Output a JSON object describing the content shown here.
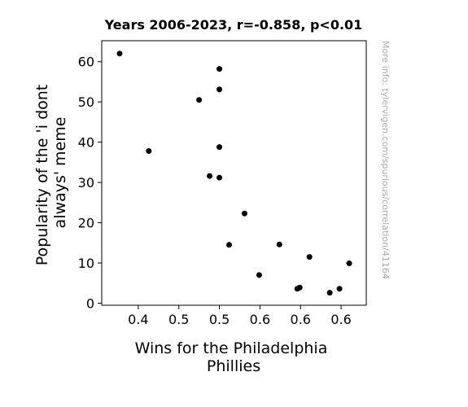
{
  "chart_data": {
    "type": "scatter",
    "title": "Years 2006-2023, r=-0.858, p<0.01",
    "xlabel": [
      "Wins for the Philadelphia",
      "Phillies"
    ],
    "ylabel": [
      "Popularity of the 'i dont",
      "always' meme"
    ],
    "xlim": [
      0.355,
      0.681
    ],
    "ylim": [
      -0.5,
      65.2
    ],
    "x_ticks": [
      0.4,
      0.45,
      0.5,
      0.55,
      0.6,
      0.65
    ],
    "x_tick_labels": [
      "0.4",
      "0.5",
      "0.5",
      "0.6",
      "0.6",
      "0.6"
    ],
    "y_ticks": [
      0,
      10,
      20,
      30,
      40,
      50,
      60
    ],
    "y_tick_labels": [
      "0",
      "10",
      "20",
      "30",
      "40",
      "50",
      "60"
    ],
    "grid": false,
    "point_color": "#000000",
    "points": [
      {
        "x": 0.377,
        "y": 62.0
      },
      {
        "x": 0.413,
        "y": 37.8
      },
      {
        "x": 0.475,
        "y": 50.5
      },
      {
        "x": 0.5,
        "y": 58.2
      },
      {
        "x": 0.5,
        "y": 53.1
      },
      {
        "x": 0.531,
        "y": 22.3
      },
      {
        "x": 0.488,
        "y": 31.6
      },
      {
        "x": 0.5,
        "y": 38.8
      },
      {
        "x": 0.5,
        "y": 31.2
      },
      {
        "x": 0.512,
        "y": 14.5
      },
      {
        "x": 0.574,
        "y": 14.6
      },
      {
        "x": 0.549,
        "y": 7.0
      },
      {
        "x": 0.611,
        "y": 11.5
      },
      {
        "x": 0.596,
        "y": 3.6
      },
      {
        "x": 0.636,
        "y": 2.6
      },
      {
        "x": 0.648,
        "y": 3.6
      },
      {
        "x": 0.599,
        "y": 3.9
      },
      {
        "x": 0.66,
        "y": 9.9
      }
    ]
  },
  "watermark": "More info: tylervigen.com/spurious/correlation/41164"
}
